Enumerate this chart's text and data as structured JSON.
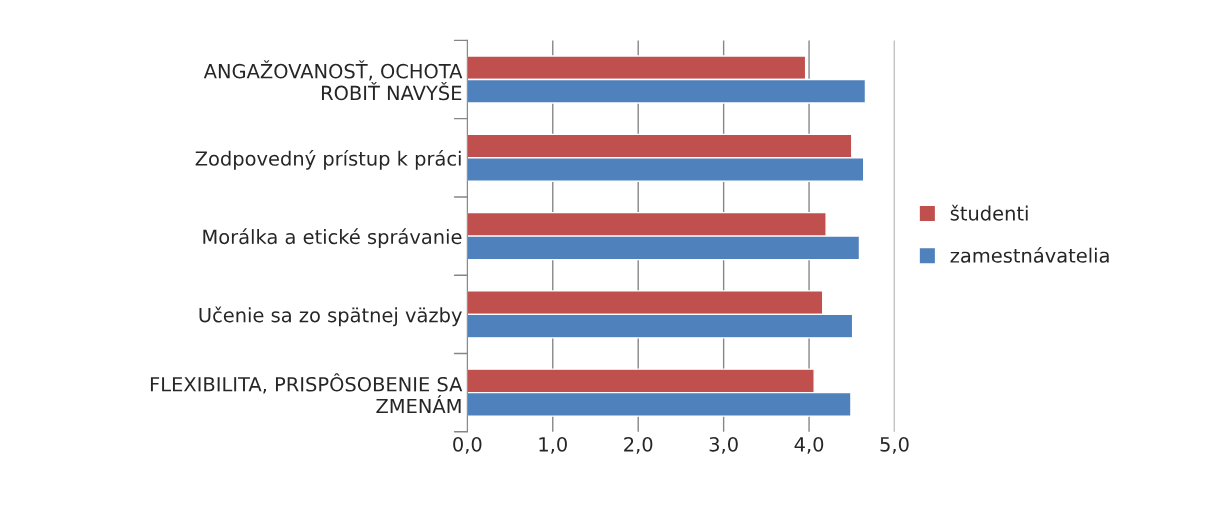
{
  "chart_data": {
    "type": "bar",
    "orientation": "horizontal",
    "categories": [
      "ANGAŽOVANOSŤ, OCHOTA\nROBIŤ NAVYŠE",
      "Zodpovedný prístup k práci",
      "Morálka a etické správanie",
      "Učenie sa zo spätnej väzby",
      "FLEXIBILITA, PRISPÔSOBENIE SA\nZMENÁM"
    ],
    "series": [
      {
        "name": "študenti",
        "color": "#c0504d",
        "values": [
          3.96,
          4.5,
          4.2,
          4.16,
          4.06
        ]
      },
      {
        "name": "zamestnávatelia",
        "color": "#4f81bd",
        "values": [
          4.66,
          4.64,
          4.59,
          4.51,
          4.49
        ]
      }
    ],
    "xlim": [
      0,
      5
    ],
    "xticks": [
      {
        "value": 0,
        "label": "0,0"
      },
      {
        "value": 1,
        "label": "1,0"
      },
      {
        "value": 2,
        "label": "2,0"
      },
      {
        "value": 3,
        "label": "3,0"
      },
      {
        "value": 4,
        "label": "4,0"
      },
      {
        "value": 5,
        "label": "5,0"
      }
    ],
    "grid": "x",
    "legend": "right"
  }
}
